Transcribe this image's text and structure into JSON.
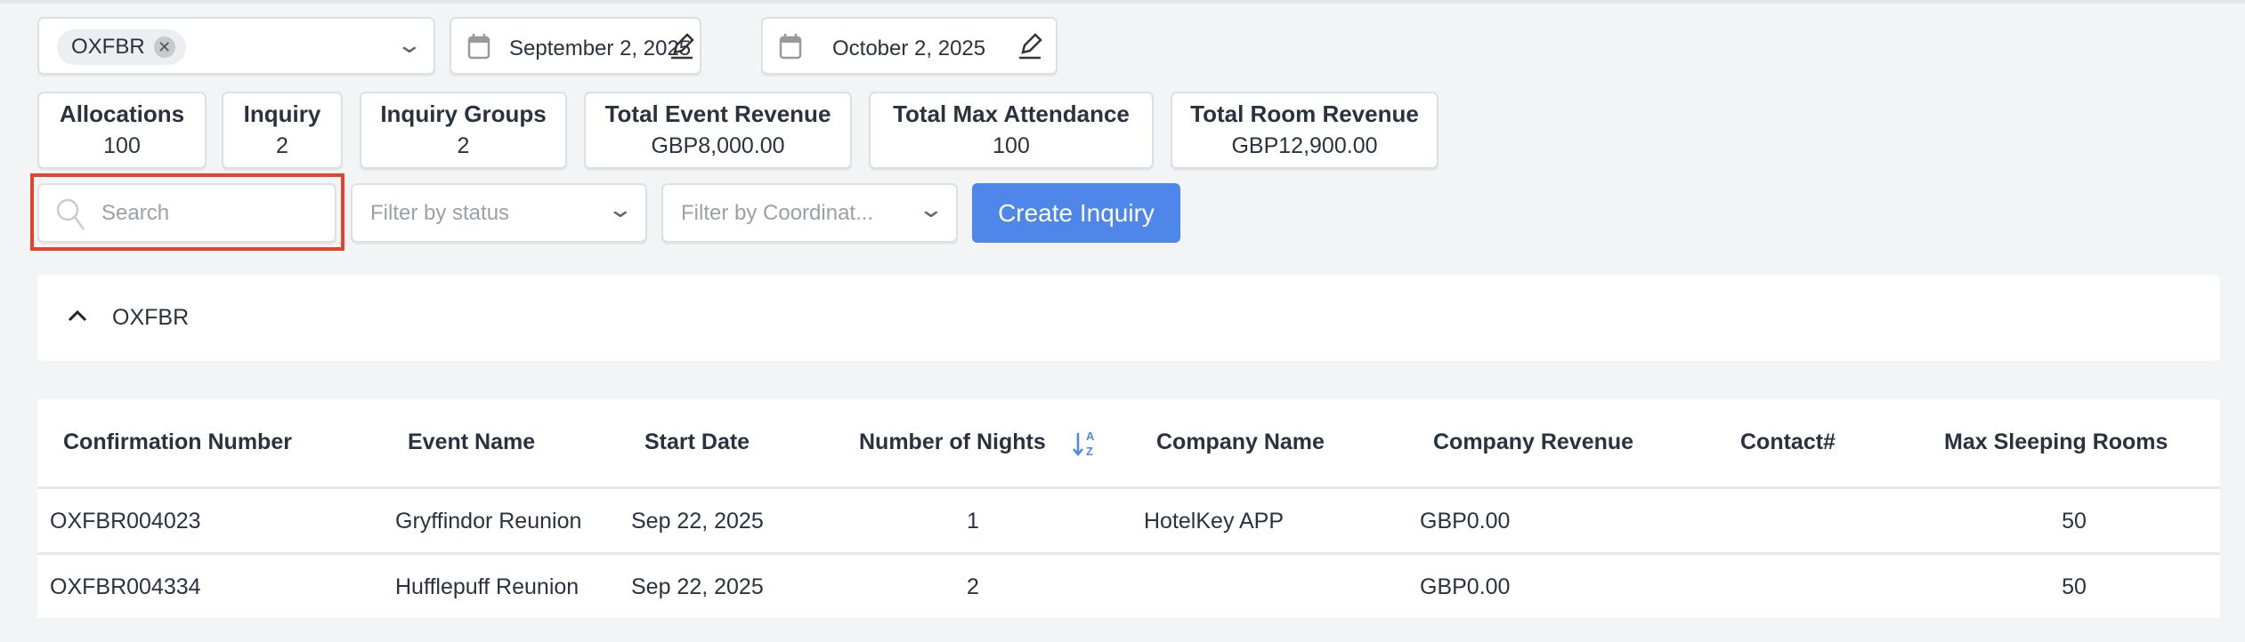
{
  "filters": {
    "property_chip": "OXFBR",
    "start_date": "September 2, 2025",
    "end_date": "October 2, 2025",
    "search_placeholder": "Search",
    "status_placeholder": "Filter by status",
    "coordinator_placeholder": "Filter by Coordinat...",
    "create_button": "Create Inquiry"
  },
  "stats": [
    {
      "label": "Allocations",
      "value": "100"
    },
    {
      "label": "Inquiry",
      "value": "2"
    },
    {
      "label": "Inquiry Groups",
      "value": "2"
    },
    {
      "label": "Total Event Revenue",
      "value": "GBP8,000.00"
    },
    {
      "label": "Total Max Attendance",
      "value": "100"
    },
    {
      "label": "Total Room Revenue",
      "value": "GBP12,900.00"
    }
  ],
  "group": {
    "title": "OXFBR",
    "expanded": true
  },
  "table": {
    "columns": [
      "Confirmation Number",
      "Event Name",
      "Start Date",
      "Number of Nights",
      "Company Name",
      "Company Revenue",
      "Contact#",
      "Max Sleeping Rooms"
    ],
    "sort": {
      "column": "Number of Nights",
      "direction": "ascending"
    },
    "rows": [
      [
        "OXFBR004023",
        "Gryffindor Reunion",
        "Sep 22, 2025",
        "1",
        "HotelKey APP",
        "GBP0.00",
        "",
        "50"
      ],
      [
        "OXFBR004334",
        "Hufflepuff Reunion",
        "Sep 22, 2025",
        "2",
        "",
        "GBP0.00",
        "",
        "50"
      ]
    ]
  },
  "colors": {
    "accent": "#4f86ea",
    "highlight": "#e5442b"
  }
}
